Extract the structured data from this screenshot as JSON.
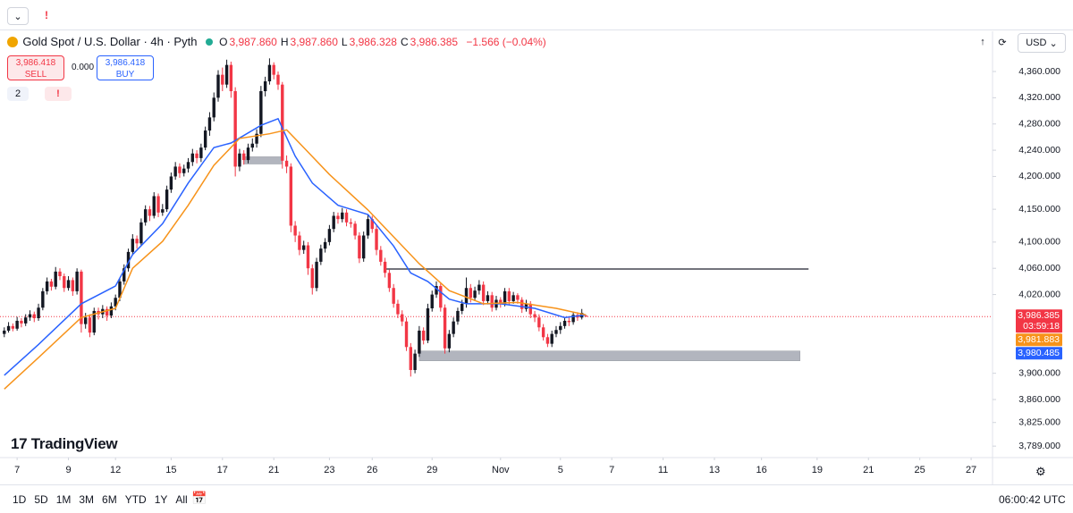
{
  "toolbar": {
    "alert": "!"
  },
  "legend": {
    "symbol": "Gold Spot / U.S. Dollar · 4h · Pyth",
    "ohlc": [
      {
        "key": "O",
        "value": "3,987.860"
      },
      {
        "key": "H",
        "value": "3,987.860"
      },
      {
        "key": "L",
        "value": "3,986.328"
      },
      {
        "key": "C",
        "value": "3,986.385"
      }
    ],
    "change": "−1.566 (−0.04%)"
  },
  "trade": {
    "sell_price": "3,986.418",
    "sell": "SELL",
    "spread": "0.000",
    "buy_price": "3,986.418",
    "buy": "BUY"
  },
  "indicators": {
    "count": "2",
    "alert": "!"
  },
  "currency": "USD",
  "logo": "TradingView",
  "chart_data": {
    "type": "candlestick",
    "up_color": "#131722",
    "down_color": "#f23645",
    "xlim": [
      -1,
      231
    ],
    "ylim": [
      3771.5,
      4384.5
    ],
    "grid": false,
    "xticks": [
      {
        "value": 3,
        "label": "7"
      },
      {
        "value": 15,
        "label": "9"
      },
      {
        "value": 26,
        "label": "12"
      },
      {
        "value": 39,
        "label": "15"
      },
      {
        "value": 51,
        "label": "17"
      },
      {
        "value": 63,
        "label": "21"
      },
      {
        "value": 76,
        "label": "23"
      },
      {
        "value": 86,
        "label": "26"
      },
      {
        "value": 100,
        "label": "29"
      },
      {
        "value": 116,
        "label": "Nov"
      },
      {
        "value": 130,
        "label": "5"
      },
      {
        "value": 142,
        "label": "7"
      },
      {
        "value": 154,
        "label": "11"
      },
      {
        "value": 166,
        "label": "13"
      },
      {
        "value": 177,
        "label": "16"
      },
      {
        "value": 190,
        "label": "19"
      },
      {
        "value": 202,
        "label": "21"
      },
      {
        "value": 214,
        "label": "25"
      },
      {
        "value": 226,
        "label": "27"
      }
    ],
    "yticks": [
      {
        "value": 4360,
        "label": "4,360.000"
      },
      {
        "value": 4320,
        "label": "4,320.000"
      },
      {
        "value": 4280,
        "label": "4,280.000"
      },
      {
        "value": 4240,
        "label": "4,240.000"
      },
      {
        "value": 4200,
        "label": "4,200.000"
      },
      {
        "value": 4150,
        "label": "4,150.000"
      },
      {
        "value": 4100,
        "label": "4,100.000"
      },
      {
        "value": 4060,
        "label": "4,060.000"
      },
      {
        "value": 4020,
        "label": "4,020.000"
      },
      {
        "value": 3900,
        "label": "3,900.000"
      },
      {
        "value": 3860,
        "label": "3,860.000"
      },
      {
        "value": 3825,
        "label": "3,825.000"
      },
      {
        "value": 3789,
        "label": "3,789.000"
      }
    ],
    "ohlc": [
      [
        3960,
        3970,
        3955,
        3965
      ],
      [
        3965,
        3978,
        3962,
        3972
      ],
      [
        3972,
        3976,
        3964,
        3968
      ],
      [
        3968,
        3986,
        3965,
        3980
      ],
      [
        3980,
        3984,
        3970,
        3976
      ],
      [
        3976,
        3990,
        3972,
        3985
      ],
      [
        3985,
        3996,
        3980,
        3990
      ],
      [
        3990,
        3994,
        3978,
        3984
      ],
      [
        3984,
        4006,
        3980,
        4000
      ],
      [
        4000,
        4030,
        3996,
        4025
      ],
      [
        4025,
        4046,
        4020,
        4040
      ],
      [
        4040,
        4044,
        4026,
        4032
      ],
      [
        4032,
        4062,
        4028,
        4055
      ],
      [
        4055,
        4060,
        4042,
        4048
      ],
      [
        4048,
        4052,
        4024,
        4030
      ],
      [
        4030,
        4048,
        4026,
        4042
      ],
      [
        4042,
        4046,
        4018,
        4025
      ],
      [
        4025,
        4060,
        4020,
        4055
      ],
      [
        4055,
        4058,
        3962,
        3975
      ],
      [
        3975,
        3992,
        3968,
        3985
      ],
      [
        3985,
        3990,
        3955,
        3962
      ],
      [
        3962,
        4000,
        3958,
        3995
      ],
      [
        3995,
        4000,
        3982,
        3990
      ],
      [
        3990,
        4004,
        3984,
        3998
      ],
      [
        3998,
        4002,
        3980,
        3988
      ],
      [
        3988,
        4008,
        3984,
        4002
      ],
      [
        4002,
        4020,
        3996,
        4015
      ],
      [
        4015,
        4045,
        4010,
        4040
      ],
      [
        4040,
        4066,
        4035,
        4060
      ],
      [
        4060,
        4090,
        4055,
        4085
      ],
      [
        4085,
        4112,
        4080,
        4105
      ],
      [
        4105,
        4110,
        4090,
        4098
      ],
      [
        4098,
        4136,
        4094,
        4130
      ],
      [
        4130,
        4156,
        4125,
        4150
      ],
      [
        4150,
        4155,
        4132,
        4140
      ],
      [
        4140,
        4176,
        4136,
        4170
      ],
      [
        4170,
        4174,
        4138,
        4145
      ],
      [
        4145,
        4158,
        4140,
        4150
      ],
      [
        4150,
        4186,
        4146,
        4180
      ],
      [
        4180,
        4206,
        4175,
        4200
      ],
      [
        4200,
        4222,
        4195,
        4215
      ],
      [
        4215,
        4220,
        4198,
        4205
      ],
      [
        4205,
        4218,
        4200,
        4212
      ],
      [
        4212,
        4228,
        4206,
        4222
      ],
      [
        4222,
        4242,
        4216,
        4235
      ],
      [
        4235,
        4240,
        4220,
        4228
      ],
      [
        4228,
        4250,
        4222,
        4244
      ],
      [
        4244,
        4276,
        4240,
        4270
      ],
      [
        4270,
        4298,
        4262,
        4290
      ],
      [
        4290,
        4328,
        4284,
        4320
      ],
      [
        4320,
        4362,
        4314,
        4355
      ],
      [
        4355,
        4366,
        4330,
        4340
      ],
      [
        4340,
        4378,
        4335,
        4370
      ],
      [
        4370,
        4375,
        4320,
        4330
      ],
      [
        4330,
        4336,
        4200,
        4215
      ],
      [
        4215,
        4242,
        4208,
        4235
      ],
      [
        4235,
        4240,
        4218,
        4225
      ],
      [
        4225,
        4250,
        4220,
        4244
      ],
      [
        4244,
        4258,
        4238,
        4250
      ],
      [
        4250,
        4272,
        4244,
        4265
      ],
      [
        4265,
        4338,
        4260,
        4330
      ],
      [
        4330,
        4352,
        4322,
        4345
      ],
      [
        4345,
        4380,
        4340,
        4370
      ],
      [
        4370,
        4374,
        4348,
        4355
      ],
      [
        4355,
        4360,
        4332,
        4340
      ],
      [
        4340,
        4344,
        4212,
        4224
      ],
      [
        4224,
        4232,
        4205,
        4215
      ],
      [
        4215,
        4220,
        4115,
        4125
      ],
      [
        4125,
        4132,
        4100,
        4110
      ],
      [
        4110,
        4116,
        4080,
        4088
      ],
      [
        4088,
        4102,
        4082,
        4095
      ],
      [
        4095,
        4100,
        4050,
        4060
      ],
      [
        4060,
        4066,
        4020,
        4030
      ],
      [
        4030,
        4076,
        4025,
        4070
      ],
      [
        4070,
        4096,
        4065,
        4090
      ],
      [
        4090,
        4106,
        4084,
        4100
      ],
      [
        4100,
        4126,
        4095,
        4120
      ],
      [
        4120,
        4146,
        4115,
        4140
      ],
      [
        4140,
        4145,
        4128,
        4135
      ],
      [
        4135,
        4152,
        4130,
        4145
      ],
      [
        4145,
        4150,
        4124,
        4130
      ],
      [
        4130,
        4136,
        4122,
        4128
      ],
      [
        4128,
        4132,
        4104,
        4110
      ],
      [
        4110,
        4115,
        4068,
        4075
      ],
      [
        4075,
        4116,
        4070,
        4110
      ],
      [
        4110,
        4142,
        4105,
        4135
      ],
      [
        4135,
        4140,
        4114,
        4120
      ],
      [
        4120,
        4125,
        4080,
        4088
      ],
      [
        4088,
        4094,
        4064,
        4070
      ],
      [
        4070,
        4076,
        4046,
        4053
      ],
      [
        4053,
        4058,
        4024,
        4030
      ],
      [
        4030,
        4036,
        4000,
        4006
      ],
      [
        4006,
        4012,
        3984,
        3990
      ],
      [
        3990,
        3996,
        3972,
        3979
      ],
      [
        3979,
        3985,
        3934,
        3940
      ],
      [
        3940,
        3946,
        3895,
        3905
      ],
      [
        3905,
        3936,
        3900,
        3930
      ],
      [
        3930,
        3972,
        3925,
        3965
      ],
      [
        3965,
        3970,
        3944,
        3950
      ],
      [
        3950,
        4006,
        3946,
        3999
      ],
      [
        3999,
        4026,
        3994,
        4020
      ],
      [
        4020,
        4040,
        4015,
        4033
      ],
      [
        4033,
        4038,
        3994,
        4000
      ],
      [
        4000,
        4005,
        3930,
        3938
      ],
      [
        3938,
        3966,
        3932,
        3960
      ],
      [
        3960,
        3985,
        3955,
        3979
      ],
      [
        3979,
        4000,
        3974,
        3995
      ],
      [
        3995,
        4012,
        3990,
        4006
      ],
      [
        4006,
        4046,
        4000,
        4030
      ],
      [
        4030,
        4036,
        4008,
        4015
      ],
      [
        4015,
        4032,
        4010,
        4026
      ],
      [
        4026,
        4042,
        4020,
        4035
      ],
      [
        4035,
        4040,
        4004,
        4010
      ],
      [
        4010,
        4025,
        4005,
        4019
      ],
      [
        4019,
        4024,
        3994,
        4000
      ],
      [
        4000,
        4018,
        3996,
        4012
      ],
      [
        4012,
        4016,
        4000,
        4006
      ],
      [
        4006,
        4030,
        4002,
        4025
      ],
      [
        4025,
        4030,
        4004,
        4010
      ],
      [
        4010,
        4024,
        4006,
        4019
      ],
      [
        4019,
        4022,
        4006,
        4012
      ],
      [
        4012,
        4016,
        3992,
        3998
      ],
      [
        3998,
        4012,
        3994,
        4006
      ],
      [
        4006,
        4010,
        3984,
        3990
      ],
      [
        3990,
        3995,
        3978,
        3985
      ],
      [
        3985,
        3990,
        3964,
        3970
      ],
      [
        3970,
        3975,
        3950,
        3955
      ],
      [
        3955,
        3960,
        3940,
        3945
      ],
      [
        3945,
        3965,
        3940,
        3960
      ],
      [
        3960,
        3972,
        3955,
        3966
      ],
      [
        3966,
        3978,
        3960,
        3972
      ],
      [
        3972,
        3986,
        3968,
        3980
      ],
      [
        3980,
        3985,
        3972,
        3978
      ],
      [
        3978,
        3994,
        3974,
        3989
      ],
      [
        3989,
        3993,
        3980,
        3985
      ],
      [
        3985,
        3998,
        3982,
        3992
      ],
      [
        3987.86,
        3987.86,
        3986.328,
        3986.385
      ]
    ],
    "lines": [
      {
        "color": "#2962ff",
        "x": [
          0,
          8,
          18,
          26,
          30,
          37,
          43,
          49,
          53,
          60,
          64,
          68,
          72,
          78,
          85,
          91,
          95,
          99,
          104,
          108,
          116,
          124,
          131,
          136
        ],
        "values": [
          3897,
          3944,
          4006,
          4033,
          4081,
          4128,
          4190,
          4244,
          4251,
          4278,
          4288,
          4231,
          4190,
          4156,
          4142,
          4094,
          4053,
          4040,
          4013,
          4006,
          4006,
          3999,
          3985,
          3989
        ]
      },
      {
        "color": "#f7931a",
        "x": [
          0,
          8,
          18,
          26,
          30,
          37,
          43,
          49,
          55,
          62,
          66,
          70,
          76,
          85,
          91,
          97,
          104,
          112,
          120,
          129,
          136
        ],
        "values": [
          3876,
          3924,
          3985,
          3999,
          4060,
          4101,
          4156,
          4217,
          4258,
          4265,
          4271,
          4244,
          4203,
          4149,
          4108,
          4067,
          4026,
          4006,
          4008,
          3999,
          3989
        ]
      }
    ],
    "hlines": [
      {
        "value": 4059,
        "from": 89,
        "to": 188,
        "color": "#434651"
      }
    ],
    "boxes": [
      {
        "top": 3934,
        "bottom": 3919,
        "from": 97,
        "to": 186
      },
      {
        "top": 4230,
        "bottom": 4219,
        "from": 56,
        "to": 65
      }
    ],
    "price_labels": [
      {
        "value": 3986.385,
        "label": "3,986.385",
        "color": "#f23645"
      },
      {
        "value": 3981.883,
        "label": "3,981.883",
        "color": "#f7931a"
      },
      {
        "value": 3980.485,
        "label": "3,980.485",
        "color": "#2962ff"
      }
    ],
    "countdown": "03:59:18"
  },
  "ranges": [
    "1D",
    "5D",
    "1M",
    "3M",
    "6M",
    "YTD",
    "1Y",
    "All"
  ],
  "clock": "06:00:42 UTC"
}
